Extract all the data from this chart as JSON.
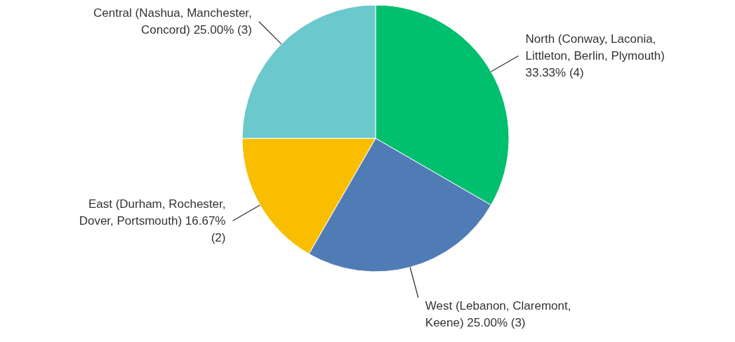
{
  "chart_data": {
    "type": "pie",
    "categories": [
      "North (Conway, Laconia, Littleton, Berlin, Plymouth)",
      "West (Lebanon, Claremont, Keene)",
      "East (Durham, Rochester, Dover, Portsmouth)",
      "Central (Nashua, Manchester, Concord)"
    ],
    "values": [
      4,
      3,
      2,
      3
    ],
    "value_labels": [
      "33.33% (4)",
      "25.00% (3)",
      "16.67% (2)",
      "25.00% (3)"
    ],
    "colors": [
      "#00bf6f",
      "#507cb6",
      "#f9be00",
      "#6bc8cd"
    ]
  }
}
